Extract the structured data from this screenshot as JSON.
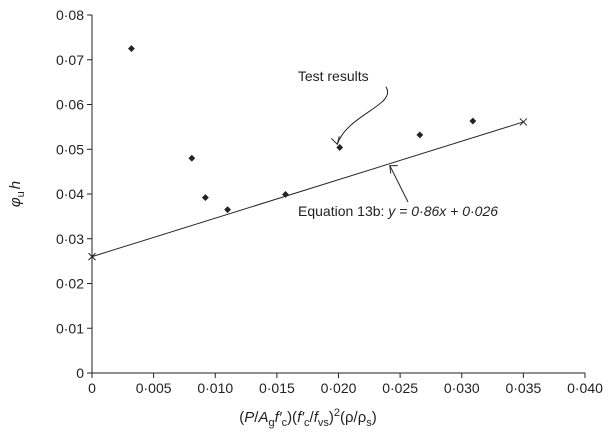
{
  "chart_data": {
    "type": "scatter",
    "xlim": [
      0,
      0.04
    ],
    "ylim": [
      0,
      0.08
    ],
    "x_ticks": [
      0,
      0.005,
      0.01,
      0.015,
      0.02,
      0.025,
      0.03,
      0.035,
      0.04
    ],
    "x_tick_labels": [
      "0",
      "0·005",
      "0·010",
      "0·015",
      "0·020",
      "0·025",
      "0·030",
      "0·035",
      "0·040"
    ],
    "y_ticks": [
      0,
      0.01,
      0.02,
      0.03,
      0.04,
      0.05,
      0.06,
      0.07,
      0.08
    ],
    "y_tick_labels": [
      "0",
      "0·01",
      "0·02",
      "0·03",
      "0·04",
      "0·05",
      "0·06",
      "0·07",
      "0·08"
    ],
    "grid": false,
    "series": [
      {
        "name": "Test results",
        "marker": "diamond",
        "points": [
          {
            "x": 0.0032,
            "y": 0.0725
          },
          {
            "x": 0.0081,
            "y": 0.048
          },
          {
            "x": 0.0092,
            "y": 0.0392
          },
          {
            "x": 0.011,
            "y": 0.0365
          },
          {
            "x": 0.0157,
            "y": 0.0399
          },
          {
            "x": 0.0201,
            "y": 0.0504
          },
          {
            "x": 0.0266,
            "y": 0.0532
          },
          {
            "x": 0.0309,
            "y": 0.0563
          }
        ]
      },
      {
        "name": "Equation 13b",
        "type": "line",
        "marker": "cross",
        "points": [
          {
            "x": 0.0,
            "y": 0.026
          },
          {
            "x": 0.035,
            "y": 0.0561
          }
        ]
      }
    ],
    "annotations": {
      "test_results": {
        "text": "Test results",
        "x": 0.0167,
        "y": 0.0653,
        "arrow_to": {
          "x": 0.0199,
          "y": 0.0511
        }
      },
      "equation": {
        "text_prefix": "Equation 13b: ",
        "text_eq": "y = 0·86x + 0·026",
        "x": 0.024,
        "y": 0.0468
      }
    },
    "xlabel_parts": {
      "p1": "(",
      "p2": "P",
      "p3": "/",
      "p4": "A",
      "p5": "g",
      "p6": "f′",
      "p7": "c",
      "p8": ")(",
      "p9": "f′",
      "p10": "c",
      "p11": "/",
      "p12": "f",
      "p13": "vs",
      "p14": ")",
      "p15": "2",
      "p16": "(ρ/ρ",
      "p17": "s",
      "p18": ")"
    },
    "ylabel_parts": {
      "p1": "φ",
      "p2": "u",
      "p3": "h"
    }
  }
}
